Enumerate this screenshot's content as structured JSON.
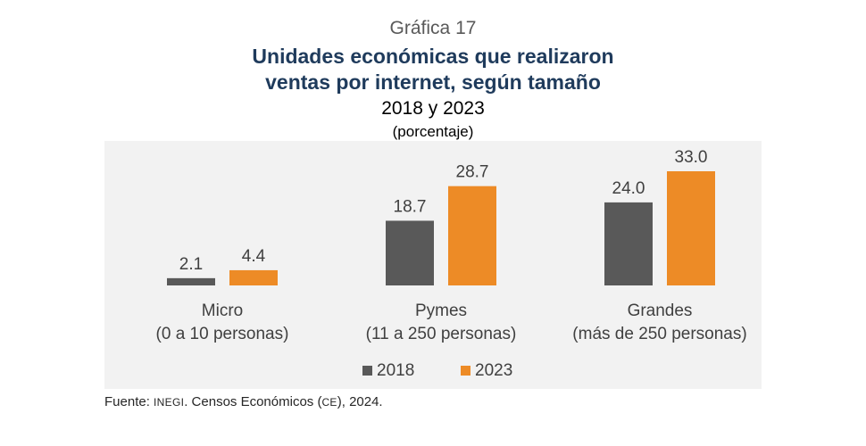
{
  "header": {
    "graph_number": "Gráfica 17",
    "title_line1": "Unidades económicas que realizaron",
    "title_line2": "ventas por internet, según tamaño",
    "subtitle": "2018 y 2023",
    "units": "(porcentaje)"
  },
  "source": {
    "prefix": "Fuente: ",
    "org": "INEGI",
    "mid": ". Censos Económicos (",
    "abbr": "CE",
    "suffix": "), 2024."
  },
  "colors": {
    "s2018": "#595959",
    "s2023": "#ed8b26",
    "label_text": "#404040",
    "plot_background": "#f2f2f2"
  },
  "chart_data": {
    "type": "bar",
    "title": "Unidades económicas que realizaron ventas por internet, según tamaño",
    "subtitle": "2018 y 2023",
    "ylabel": "",
    "xlabel": "",
    "ylim": [
      0,
      33
    ],
    "grid": false,
    "legend_position": "bottom",
    "categories": [
      [
        "Micro",
        "(0 a 10 personas)"
      ],
      [
        "Pymes",
        "(11 a 250 personas)"
      ],
      [
        "Grandes",
        "(más de 250 personas)"
      ]
    ],
    "series": [
      {
        "name": "2018",
        "color": "#595959",
        "values": [
          2.1,
          18.7,
          24.0
        ],
        "labels": [
          "2.1",
          "18.7",
          "24.0"
        ]
      },
      {
        "name": "2023",
        "color": "#ed8b26",
        "values": [
          4.4,
          28.7,
          33.0
        ],
        "labels": [
          "4.4",
          "28.7",
          "33.0"
        ]
      }
    ]
  }
}
